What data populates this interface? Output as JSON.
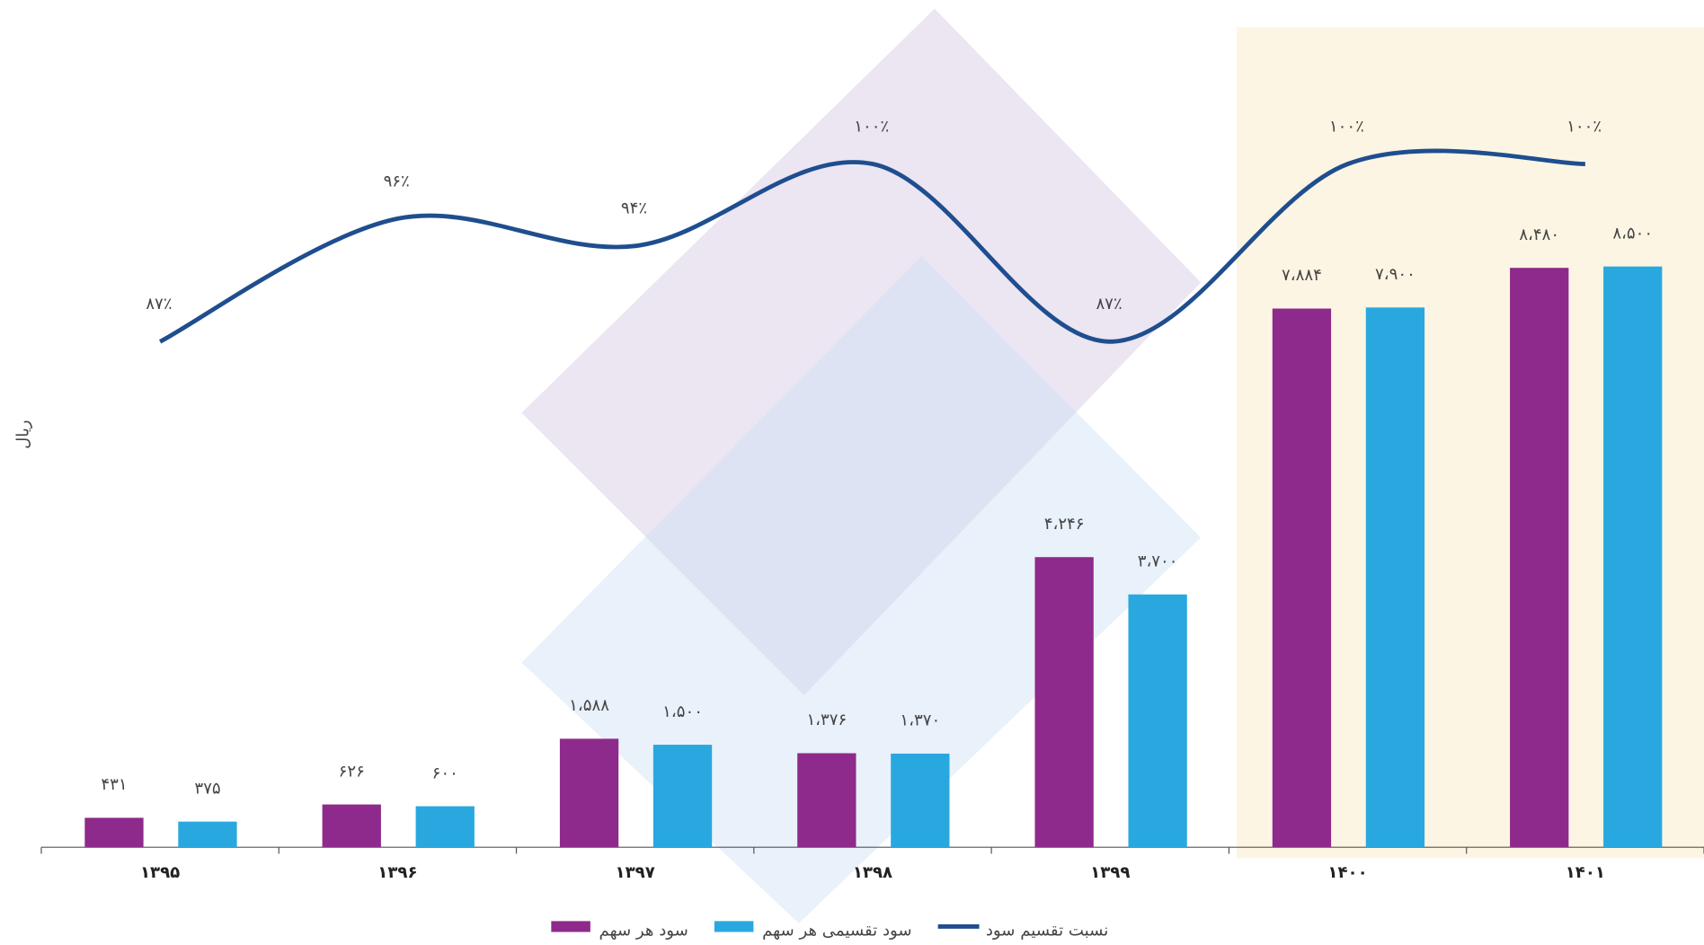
{
  "chart_data": {
    "type": "bar",
    "y_axis_label": "ریال",
    "categories": [
      "۱۳۹۵",
      "۱۳۹۶",
      "۱۳۹۷",
      "۱۳۹۸",
      "۱۳۹۹",
      "۱۴۰۰",
      "۱۴۰۱"
    ],
    "ylim": [
      0,
      12400
    ],
    "y2lim": [
      50,
      112
    ],
    "series": [
      {
        "name": "سود هر سهم",
        "color": "#8e2a8b",
        "values": [
          431,
          626,
          1588,
          1376,
          4246,
          7884,
          8480
        ],
        "value_labels": [
          "۴۳۱",
          "۶۲۶",
          "۱،۵۸۸",
          "۱،۳۷۶",
          "۴،۲۴۶",
          "۷،۸۸۴",
          "۸،۴۸۰"
        ]
      },
      {
        "name": "سود تقسیمی هر سهم",
        "color": "#29a8e0",
        "values": [
          375,
          600,
          1500,
          1370,
          3700,
          7900,
          8500
        ],
        "value_labels": [
          "۳۷۵",
          "۶۰۰",
          "۱،۵۰۰",
          "۱،۳۷۰",
          "۳،۷۰۰",
          "۷،۹۰۰",
          "۸،۵۰۰"
        ]
      },
      {
        "name": "نسبت تقسیم سود",
        "color": "#1f4e8f",
        "type": "line",
        "axis": "y2",
        "values": [
          87,
          96,
          94,
          100,
          87,
          100,
          100
        ],
        "value_labels": [
          "۸۷٪",
          "۹۶٪",
          "۹۴٪",
          "۱۰۰٪",
          "۸۷٪",
          "۱۰۰٪",
          "۱۰۰٪"
        ]
      }
    ]
  }
}
